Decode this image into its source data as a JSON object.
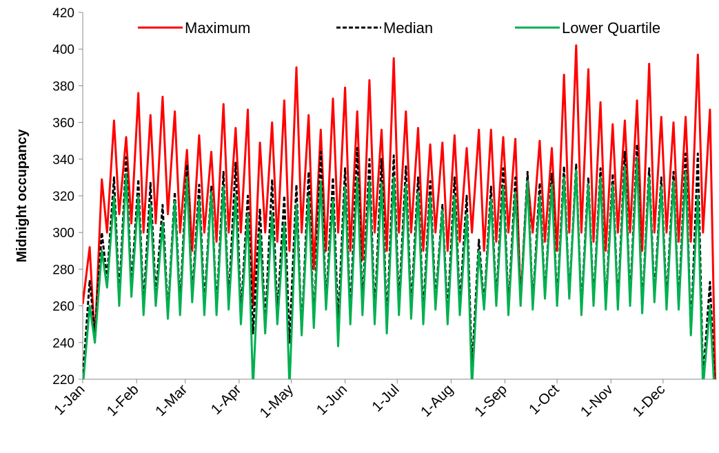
{
  "chart_data": {
    "type": "line",
    "y_label": "Midnight occupancy",
    "x": [
      1,
      5,
      8,
      12,
      15,
      19,
      22,
      26,
      29,
      33,
      36,
      40,
      43,
      47,
      50,
      54,
      57,
      61,
      64,
      68,
      71,
      75,
      78,
      82,
      85,
      89,
      92,
      96,
      99,
      103,
      106,
      110,
      113,
      117,
      120,
      124,
      127,
      131,
      134,
      138,
      141,
      145,
      148,
      152,
      155,
      159,
      162,
      166,
      169,
      173,
      176,
      180,
      183,
      187,
      190,
      194,
      197,
      201,
      204,
      208,
      211,
      215,
      218,
      222,
      225,
      229,
      232,
      236,
      239,
      243,
      246,
      250,
      253,
      257,
      260,
      264,
      267,
      271,
      274,
      278,
      281,
      285,
      288,
      292,
      295,
      299,
      302,
      306,
      309,
      313,
      316,
      320,
      323,
      327,
      330,
      334,
      337,
      341,
      344,
      348,
      351,
      355,
      358,
      362,
      365
    ],
    "series": [
      {
        "name": "Maximum",
        "color": "#ff0000",
        "dash": false,
        "values": [
          261,
          292,
          240,
          329,
          300,
          361,
          310,
          352,
          305,
          376,
          300,
          364,
          305,
          374,
          310,
          366,
          300,
          345,
          290,
          353,
          300,
          344,
          295,
          370,
          300,
          357,
          300,
          367,
          260,
          349,
          300,
          360,
          295,
          372,
          290,
          390,
          300,
          364,
          280,
          356,
          290,
          373,
          300,
          379,
          290,
          366,
          285,
          383,
          300,
          356,
          290,
          395,
          300,
          366,
          300,
          357,
          290,
          348,
          300,
          349,
          290,
          353,
          295,
          346,
          300,
          356,
          290,
          356,
          295,
          352,
          300,
          351,
          262,
          330,
          300,
          350,
          295,
          346,
          290,
          386,
          300,
          402,
          300,
          389,
          295,
          371,
          290,
          359,
          300,
          361,
          300,
          372,
          290,
          392,
          300,
          363,
          300,
          360,
          295,
          363,
          295,
          397,
          300,
          367,
          220
        ]
      },
      {
        "name": "Median",
        "color": "#000000",
        "dash": true,
        "values": [
          220,
          274,
          245,
          300,
          275,
          330,
          265,
          341,
          270,
          329,
          260,
          327,
          265,
          315,
          255,
          322,
          260,
          337,
          265,
          326,
          260,
          325,
          258,
          333,
          262,
          338,
          255,
          320,
          245,
          313,
          250,
          329,
          255,
          320,
          240,
          326,
          245,
          333,
          250,
          344,
          260,
          330,
          250,
          335,
          255,
          346,
          260,
          340,
          255,
          340,
          250,
          342,
          260,
          336,
          258,
          330,
          255,
          328,
          262,
          315,
          255,
          330,
          260,
          320,
          225,
          296,
          260,
          325,
          262,
          335,
          258,
          330,
          262,
          333,
          260,
          327,
          265,
          332,
          262,
          336,
          265,
          337,
          258,
          330,
          262,
          335,
          260,
          332,
          260,
          344,
          262,
          348,
          258,
          335,
          265,
          330,
          262,
          333,
          260,
          343,
          245,
          343,
          220,
          273,
          210
        ]
      },
      {
        "name": "Lower Quartile",
        "color": "#00b050",
        "dash": false,
        "values": [
          215,
          260,
          240,
          290,
          270,
          320,
          260,
          332,
          265,
          320,
          255,
          315,
          260,
          305,
          253,
          317,
          255,
          330,
          262,
          318,
          255,
          322,
          255,
          325,
          258,
          320,
          250,
          310,
          215,
          300,
          245,
          310,
          250,
          305,
          215,
          315,
          244,
          320,
          248,
          328,
          258,
          318,
          238,
          325,
          250,
          330,
          255,
          328,
          250,
          327,
          245,
          330,
          255,
          326,
          253,
          322,
          250,
          320,
          258,
          312,
          250,
          320,
          255,
          310,
          215,
          290,
          258,
          318,
          260,
          325,
          255,
          322,
          260,
          328,
          258,
          320,
          264,
          326,
          260,
          330,
          264,
          334,
          255,
          326,
          260,
          330,
          258,
          326,
          258,
          336,
          260,
          340,
          256,
          330,
          262,
          325,
          258,
          328,
          258,
          333,
          244,
          320,
          215,
          260,
          205
        ]
      }
    ],
    "xlim": [
      1,
      366
    ],
    "xticks": [
      {
        "value": 1,
        "label": "1-Jan"
      },
      {
        "value": 32,
        "label": "1-Feb"
      },
      {
        "value": 60,
        "label": "1-Mar"
      },
      {
        "value": 91,
        "label": "1-Apr"
      },
      {
        "value": 121,
        "label": "1-May"
      },
      {
        "value": 152,
        "label": "1-Jun"
      },
      {
        "value": 182,
        "label": "1-Jul"
      },
      {
        "value": 213,
        "label": "1-Aug"
      },
      {
        "value": 244,
        "label": "1-Sep"
      },
      {
        "value": 274,
        "label": "1-Oct"
      },
      {
        "value": 305,
        "label": "1-Nov"
      },
      {
        "value": 335,
        "label": "1-Dec"
      }
    ],
    "ylim": [
      220,
      420
    ],
    "yticks": [
      220,
      240,
      260,
      280,
      300,
      320,
      340,
      360,
      380,
      400,
      420
    ],
    "legend": "top"
  }
}
